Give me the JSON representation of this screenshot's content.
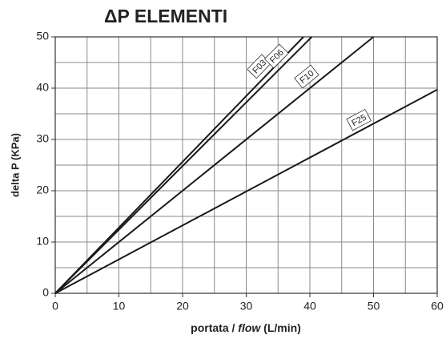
{
  "chart_data": {
    "type": "line",
    "title": "ΔP ELEMENTI",
    "x_label_parts": [
      "portata / ",
      "flow",
      " (L/min)"
    ],
    "y_label": "delta P (KPa)",
    "series": [
      {
        "name": "F03",
        "color": "#1a1a1a",
        "x": [
          0,
          39
        ],
        "values": [
          0,
          50
        ]
      },
      {
        "name": "F06",
        "color": "#1a1a1a",
        "x": [
          0,
          40.3
        ],
        "values": [
          0,
          50
        ]
      },
      {
        "name": "F10",
        "color": "#1a1a1a",
        "x": [
          0,
          50
        ],
        "values": [
          0,
          50
        ]
      },
      {
        "name": "F25",
        "color": "#1a1a1a",
        "x": [
          0,
          60
        ],
        "values": [
          0,
          39.7
        ]
      }
    ],
    "xlim": [
      0,
      60
    ],
    "xticks": [
      0,
      10,
      20,
      30,
      40,
      50,
      60
    ],
    "ylim": [
      0,
      50
    ],
    "yticks": [
      0,
      10,
      20,
      30,
      40,
      50
    ],
    "minor_step": 5,
    "grid": true
  }
}
